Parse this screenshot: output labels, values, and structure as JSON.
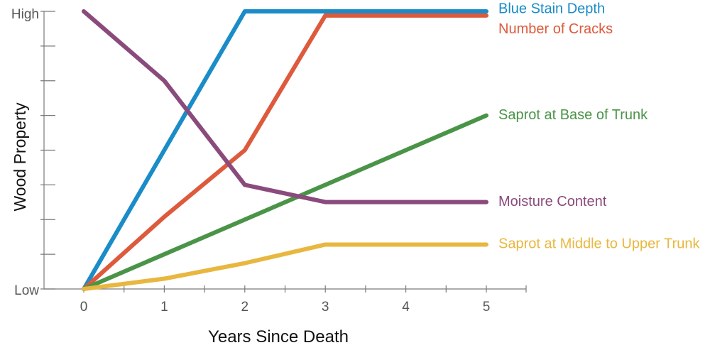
{
  "chart_data": {
    "type": "line",
    "title": "",
    "xlabel": "Years Since Death",
    "ylabel": "Wood Property",
    "x_ticks": [
      "0",
      "1",
      "2",
      "3",
      "4",
      "5"
    ],
    "y_tick_labels": {
      "low": "Low",
      "high": "High"
    },
    "xlim": [
      0,
      5
    ],
    "ylim": [
      0,
      1
    ],
    "grid": false,
    "legend": "inline labels at right end of each line",
    "series": [
      {
        "name": "Blue Stain Depth",
        "color": "#1a8cc7",
        "x": [
          0,
          2,
          3,
          5
        ],
        "y": [
          0,
          1.0,
          1.0,
          1.0
        ]
      },
      {
        "name": "Number of Cracks",
        "color": "#dd5a3c",
        "x": [
          0,
          1,
          2,
          3,
          5
        ],
        "y": [
          0,
          0.26,
          0.5,
          0.985,
          0.985
        ]
      },
      {
        "name": "Saprot at Base of Trunk",
        "color": "#4a9448",
        "x": [
          0,
          5
        ],
        "y": [
          0,
          0.625
        ]
      },
      {
        "name": "Moisture Content",
        "color": "#8a4a7c",
        "x": [
          0,
          1,
          2,
          3,
          5
        ],
        "y": [
          1.0,
          0.75,
          0.375,
          0.313,
          0.313
        ]
      },
      {
        "name": "Saprot at Middle to Upper Trunk",
        "color": "#e8b73f",
        "x": [
          0,
          1,
          2,
          3,
          5
        ],
        "y": [
          0,
          0.037,
          0.093,
          0.16,
          0.16
        ]
      }
    ]
  }
}
